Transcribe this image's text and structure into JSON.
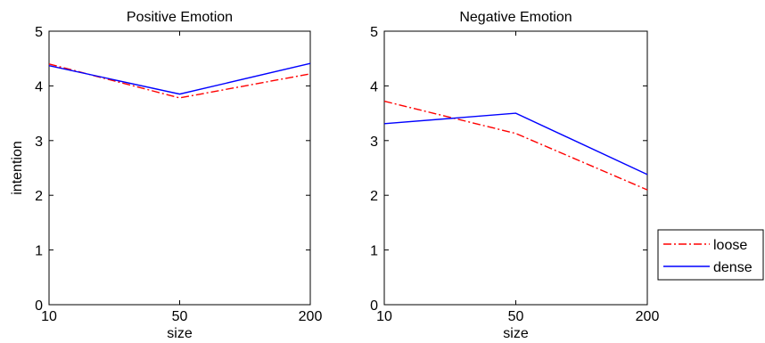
{
  "chart_data": [
    {
      "type": "line",
      "title": "Positive Emotion",
      "xlabel": "size",
      "ylabel": "intention",
      "categories": [
        "10",
        "50",
        "200"
      ],
      "ylim": [
        0,
        5
      ],
      "yticks": [
        "0",
        "1",
        "2",
        "3",
        "4",
        "5"
      ],
      "grid": false,
      "series": [
        {
          "name": "loose",
          "values": [
            4.4,
            3.78,
            4.22
          ],
          "color": "#ff0000",
          "style": "dash-dot"
        },
        {
          "name": "dense",
          "values": [
            4.37,
            3.85,
            4.41
          ],
          "color": "#0000ff",
          "style": "solid"
        }
      ]
    },
    {
      "type": "line",
      "title": "Negative Emotion",
      "xlabel": "size",
      "ylabel": "",
      "categories": [
        "10",
        "50",
        "200"
      ],
      "ylim": [
        0,
        5
      ],
      "yticks": [
        "0",
        "1",
        "2",
        "3",
        "4",
        "5"
      ],
      "grid": false,
      "series": [
        {
          "name": "loose",
          "values": [
            3.72,
            3.13,
            2.1
          ],
          "color": "#ff0000",
          "style": "dash-dot"
        },
        {
          "name": "dense",
          "values": [
            3.31,
            3.5,
            2.38
          ],
          "color": "#0000ff",
          "style": "solid"
        }
      ]
    }
  ],
  "legend": {
    "placement": "right",
    "entries": [
      {
        "label": "loose",
        "color": "#ff0000",
        "style": "dash-dot"
      },
      {
        "label": "dense",
        "color": "#0000ff",
        "style": "solid"
      }
    ]
  }
}
